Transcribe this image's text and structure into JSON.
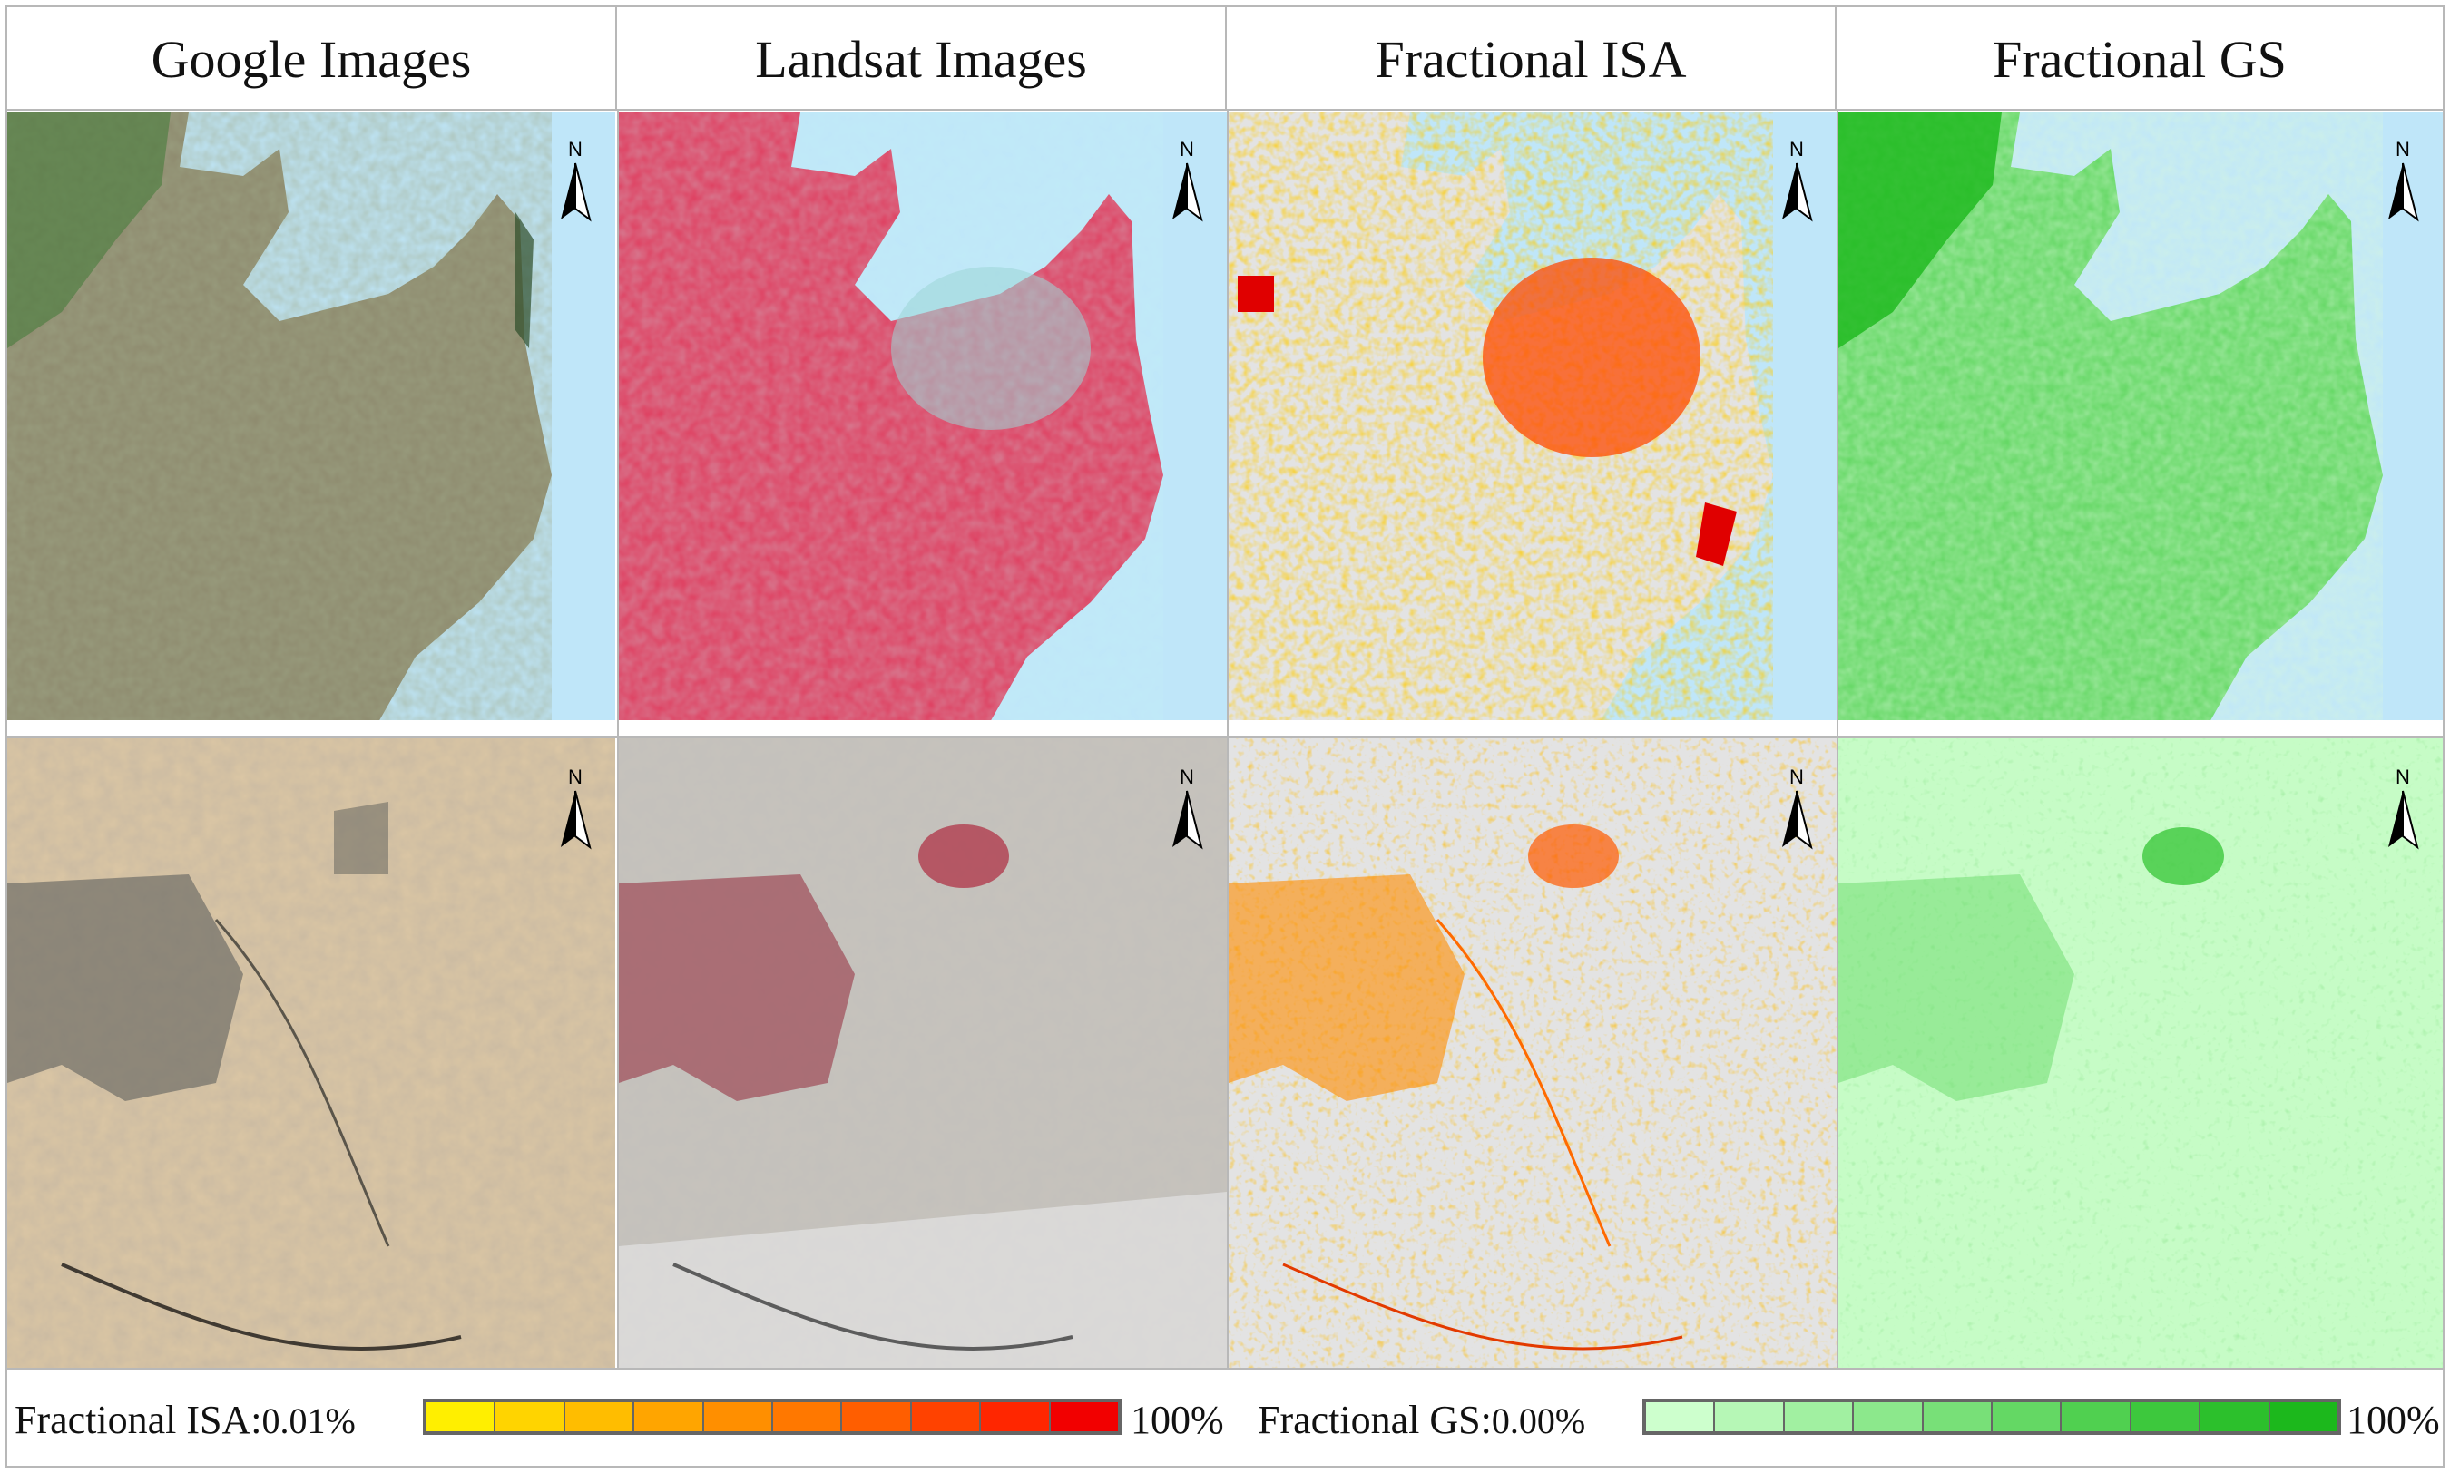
{
  "columns": [
    {
      "title": "Google Images"
    },
    {
      "title": "Landsat Images"
    },
    {
      "title": "Fractional ISA"
    },
    {
      "title": "Fractional GS"
    }
  ],
  "north_label": "N",
  "legend": {
    "isa": {
      "label": "Fractional ISA:",
      "min": "0.01%",
      "max": "100%",
      "colors": [
        "#ffef00",
        "#ffd400",
        "#ffbd00",
        "#ffa500",
        "#ff8f00",
        "#ff7800",
        "#ff5e00",
        "#ff4200",
        "#ff2600",
        "#f20000"
      ]
    },
    "gs": {
      "label": "Fractional GS:",
      "min": "0.00%",
      "max": "100%",
      "colors": [
        "#cdffcd",
        "#b6f7b6",
        "#a1f0a1",
        "#8ce88c",
        "#78e078",
        "#64d864",
        "#50d050",
        "#3dc83d",
        "#2cc02c",
        "#1cb81c"
      ]
    }
  },
  "colors": {
    "water": "#bfe6f9",
    "google_land": "#8e8a6e",
    "landsat_land": "#e03a5c",
    "isa_bg": "#e3e3e3",
    "isa_high": "#ff4a00",
    "gs_land": "#5fd65f",
    "gs_bg_row2": "#c6fcc6",
    "desert": "#dcc7a4",
    "landsat_desert": "#c7c3bc",
    "grid_line": "#b8b8b8"
  }
}
